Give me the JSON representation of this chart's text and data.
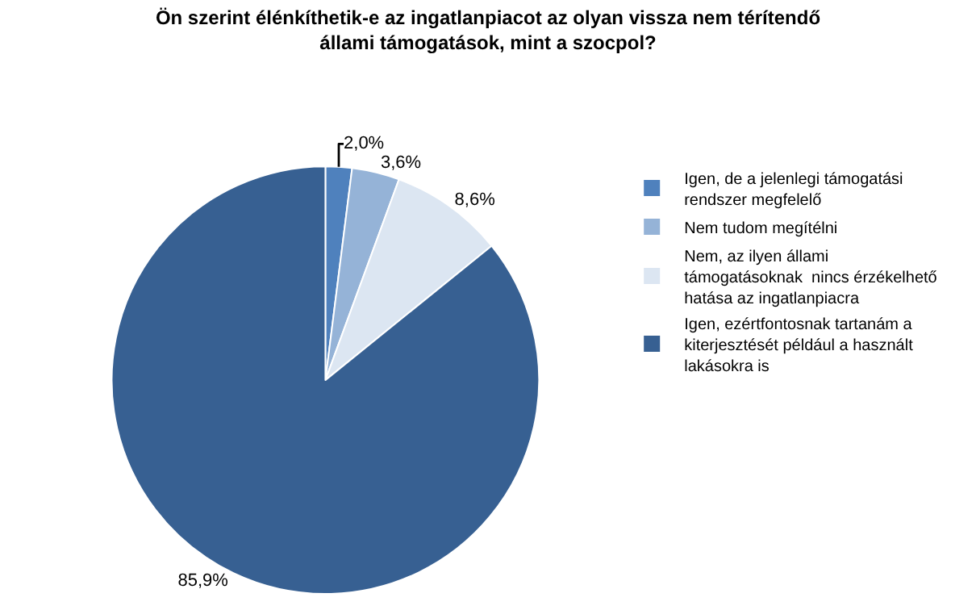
{
  "chart_data": {
    "type": "pie",
    "title": "Ön szerint élénkíthetik-e az ingatlanpiacot az olyan vissza nem térítendő állami támogatások, mint a szocpol?",
    "categories": [
      "Igen, de a jelenlegi támogatási rendszer megfelelő",
      "Nem tudom megítélni",
      "Nem, az ilyen állami támogatásoknak  nincs érzékelhető hatása az ingatlanpiacra",
      "Igen, ezértfontosnak tartanám a kiterjesztését például a használt lakásokra is"
    ],
    "values": [
      2.0,
      3.6,
      8.6,
      85.9
    ],
    "colors": [
      "#4f81bd",
      "#95b3d7",
      "#dce6f2",
      "#376092"
    ],
    "value_labels": [
      "2,0%",
      "3,6%",
      "8,6%",
      "85,9%"
    ],
    "legend": "right"
  }
}
